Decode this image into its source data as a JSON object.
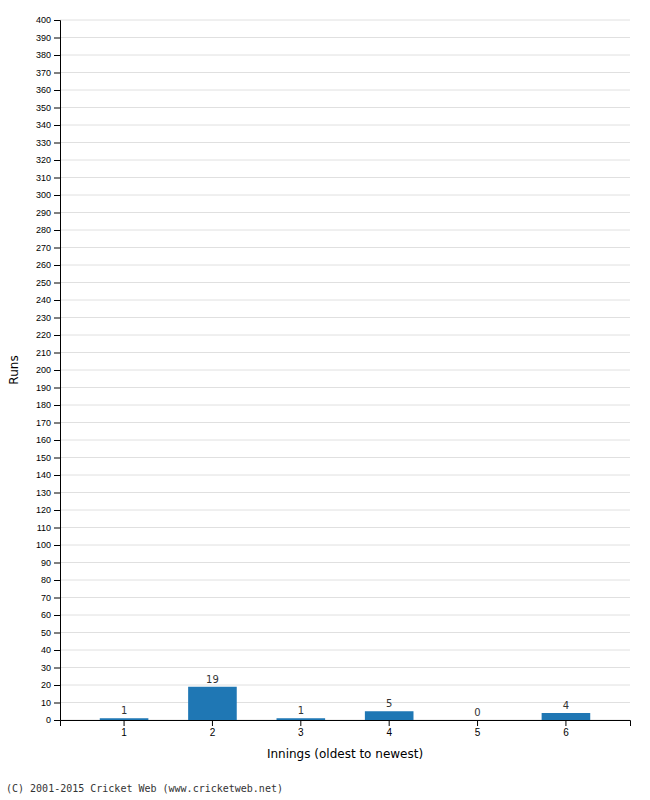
{
  "chart_data": {
    "type": "bar",
    "xlabel": "Innings (oldest to newest)",
    "ylabel": "Runs",
    "categories": [
      "1",
      "2",
      "3",
      "4",
      "5",
      "6"
    ],
    "values": [
      1,
      19,
      1,
      5,
      0,
      4
    ],
    "ylim": [
      0,
      400
    ],
    "yticks": [
      0,
      10,
      20,
      30,
      40,
      50,
      60,
      70,
      80,
      90,
      100,
      110,
      120,
      130,
      140,
      150,
      160,
      170,
      180,
      190,
      200,
      210,
      220,
      230,
      240,
      250,
      260,
      270,
      280,
      290,
      300,
      310,
      320,
      330,
      340,
      350,
      360,
      370,
      380,
      390,
      400
    ],
    "grid": true,
    "data_labels": true,
    "annotations": [
      "(C) 2001-2015 Cricket Web (www.cricketweb.net)"
    ]
  }
}
